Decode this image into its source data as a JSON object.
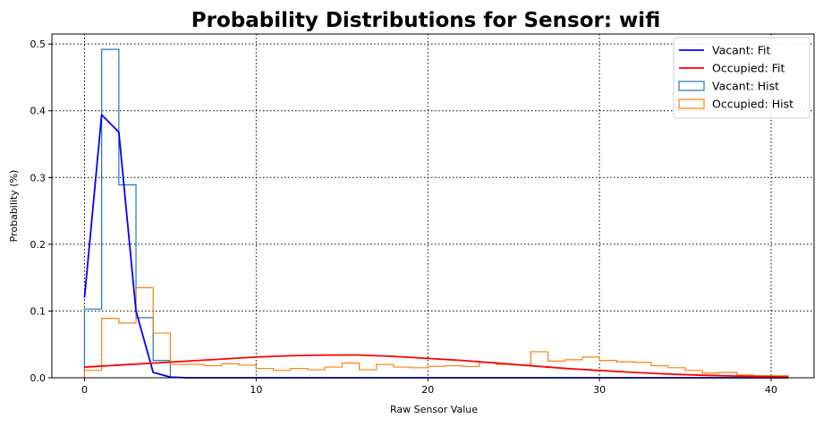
{
  "chart_data": {
    "type": "line",
    "title": "Probability Distributions for Sensor: wifi",
    "xlabel": "Raw Sensor Value",
    "ylabel": "Probability (%)",
    "xlim": [
      -1.9,
      42.5
    ],
    "ylim": [
      0,
      0.515
    ],
    "xticks": [
      0,
      10,
      20,
      30,
      40
    ],
    "yticks": [
      0.0,
      0.1,
      0.2,
      0.3,
      0.4,
      0.5
    ],
    "xtick_labels": [
      "0",
      "10",
      "20",
      "30",
      "40"
    ],
    "ytick_labels": [
      "0.0",
      "0.1",
      "0.2",
      "0.3",
      "0.4",
      "0.5"
    ],
    "grid": true,
    "legend_position": "top-right",
    "series": [
      {
        "name": "Vacant: Fit",
        "kind": "line",
        "color": "#0000ff",
        "x": [
          0,
          1,
          2,
          3,
          4,
          5,
          6,
          10,
          20,
          30,
          41
        ],
        "y": [
          0.12,
          0.394,
          0.368,
          0.1,
          0.008,
          0.001,
          0.0,
          0.0,
          0.0,
          0.0,
          0.0
        ]
      },
      {
        "name": "Occupied: Fit",
        "kind": "line",
        "color": "#ff0000",
        "x": [
          0,
          2,
          4,
          6,
          8,
          10,
          12,
          14,
          16,
          18,
          20,
          22,
          24,
          26,
          28,
          30,
          32,
          34,
          36,
          38,
          40,
          41
        ],
        "y": [
          0.016,
          0.019,
          0.022,
          0.025,
          0.028,
          0.031,
          0.033,
          0.034,
          0.034,
          0.032,
          0.029,
          0.026,
          0.022,
          0.018,
          0.014,
          0.011,
          0.008,
          0.0055,
          0.0038,
          0.0025,
          0.0016,
          0.0012
        ]
      },
      {
        "name": "Vacant: Hist",
        "kind": "hist",
        "color": "#1f77b4",
        "bin_edges": [
          0,
          1,
          2,
          3,
          4,
          5
        ],
        "values": [
          0.103,
          0.492,
          0.289,
          0.09,
          0.026
        ]
      },
      {
        "name": "Occupied: Hist",
        "kind": "hist",
        "color": "#ff7f0e",
        "bin_edges": [
          0,
          1,
          2,
          3,
          4,
          5,
          6,
          7,
          8,
          9,
          10,
          11,
          12,
          13,
          14,
          15,
          16,
          17,
          18,
          19,
          20,
          21,
          22,
          23,
          24,
          25,
          26,
          27,
          28,
          29,
          30,
          31,
          32,
          33,
          34,
          35,
          36,
          37,
          38,
          39,
          40,
          41
        ],
        "values": [
          0.011,
          0.089,
          0.082,
          0.135,
          0.067,
          0.02,
          0.02,
          0.018,
          0.021,
          0.019,
          0.014,
          0.011,
          0.014,
          0.012,
          0.016,
          0.022,
          0.012,
          0.02,
          0.016,
          0.015,
          0.017,
          0.018,
          0.017,
          0.023,
          0.02,
          0.019,
          0.039,
          0.025,
          0.027,
          0.031,
          0.026,
          0.024,
          0.023,
          0.018,
          0.015,
          0.011,
          0.007,
          0.008,
          0.004,
          0.003,
          0.003
        ]
      }
    ]
  }
}
